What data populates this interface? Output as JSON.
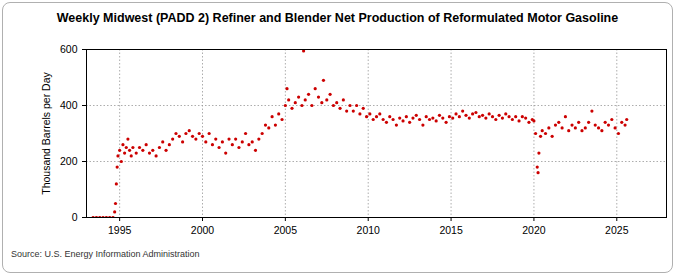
{
  "chart_data": {
    "type": "scatter",
    "title": "Weekly Midwest (PADD 2) Refiner and Blender Net Production of Reformulated Motor Gasoline",
    "y_label": "Thousand Barrels per Day",
    "caption": "Source: U.S. Energy Information Administration",
    "color": "#cc0000",
    "grid": true,
    "xlim": [
      1993,
      2028
    ],
    "xticks": [
      1995,
      2000,
      2005,
      2010,
      2015,
      2020,
      2025
    ],
    "ylim": [
      0,
      600
    ],
    "yticks": [
      0,
      200,
      400,
      600
    ],
    "x": [
      1993.4,
      1993.6,
      1993.8,
      1994.0,
      1994.2,
      1994.4,
      1994.6,
      1994.7,
      1994.75,
      1994.8,
      1994.85,
      1994.9,
      1995.0,
      1995.1,
      1995.2,
      1995.3,
      1995.4,
      1995.5,
      1995.6,
      1995.7,
      1995.8,
      1996.0,
      1996.2,
      1996.4,
      1996.6,
      1996.8,
      1997.0,
      1997.2,
      1997.4,
      1997.6,
      1997.8,
      1998.0,
      1998.2,
      1998.4,
      1998.6,
      1998.8,
      1999.0,
      1999.2,
      1999.4,
      1999.6,
      1999.8,
      2000.0,
      2000.2,
      2000.4,
      2000.6,
      2000.8,
      2001.0,
      2001.2,
      2001.4,
      2001.6,
      2001.8,
      2002.0,
      2002.2,
      2002.4,
      2002.6,
      2002.8,
      2003.0,
      2003.2,
      2003.4,
      2003.6,
      2003.8,
      2004.0,
      2004.2,
      2004.4,
      2004.6,
      2004.8,
      2005.0,
      2005.1,
      2005.2,
      2005.4,
      2005.6,
      2005.8,
      2006.0,
      2006.1,
      2006.2,
      2006.4,
      2006.6,
      2006.8,
      2007.0,
      2007.2,
      2007.3,
      2007.5,
      2007.7,
      2007.9,
      2008.1,
      2008.3,
      2008.5,
      2008.7,
      2008.9,
      2009.1,
      2009.3,
      2009.5,
      2009.7,
      2009.9,
      2010.1,
      2010.3,
      2010.5,
      2010.7,
      2010.9,
      2011.1,
      2011.3,
      2011.5,
      2011.7,
      2011.9,
      2012.1,
      2012.3,
      2012.5,
      2012.7,
      2012.9,
      2013.1,
      2013.3,
      2013.5,
      2013.7,
      2013.9,
      2014.1,
      2014.3,
      2014.5,
      2014.7,
      2014.9,
      2015.1,
      2015.3,
      2015.5,
      2015.7,
      2015.9,
      2016.1,
      2016.3,
      2016.5,
      2016.7,
      2016.9,
      2017.1,
      2017.3,
      2017.5,
      2017.7,
      2017.9,
      2018.1,
      2018.3,
      2018.5,
      2018.7,
      2018.9,
      2019.1,
      2019.3,
      2019.5,
      2019.7,
      2019.9,
      2020.0,
      2020.1,
      2020.2,
      2020.25,
      2020.3,
      2020.4,
      2020.5,
      2020.7,
      2020.9,
      2021.1,
      2021.3,
      2021.5,
      2021.7,
      2021.9,
      2022.1,
      2022.3,
      2022.5,
      2022.7,
      2022.9,
      2023.1,
      2023.3,
      2023.5,
      2023.7,
      2023.9,
      2024.1,
      2024.3,
      2024.5,
      2024.7,
      2024.9,
      2025.1,
      2025.3,
      2025.5,
      2025.6
    ],
    "values": [
      0,
      0,
      0,
      0,
      0,
      0,
      0,
      20,
      50,
      120,
      180,
      220,
      240,
      200,
      260,
      230,
      250,
      280,
      240,
      220,
      250,
      230,
      250,
      240,
      260,
      230,
      240,
      220,
      250,
      270,
      240,
      260,
      280,
      300,
      290,
      270,
      300,
      310,
      290,
      280,
      300,
      290,
      270,
      300,
      260,
      280,
      250,
      270,
      230,
      280,
      260,
      280,
      250,
      270,
      300,
      260,
      270,
      240,
      280,
      300,
      330,
      320,
      360,
      330,
      370,
      350,
      400,
      460,
      420,
      390,
      410,
      430,
      400,
      595,
      420,
      440,
      400,
      460,
      430,
      410,
      490,
      420,
      440,
      400,
      410,
      390,
      420,
      380,
      400,
      380,
      400,
      370,
      390,
      360,
      370,
      350,
      360,
      370,
      350,
      340,
      360,
      350,
      330,
      355,
      345,
      360,
      340,
      355,
      365,
      350,
      330,
      360,
      350,
      355,
      345,
      365,
      355,
      340,
      360,
      355,
      370,
      360,
      380,
      365,
      355,
      370,
      375,
      360,
      365,
      355,
      370,
      360,
      350,
      365,
      355,
      370,
      360,
      350,
      360,
      345,
      360,
      355,
      340,
      350,
      345,
      300,
      180,
      160,
      230,
      290,
      310,
      300,
      320,
      290,
      330,
      340,
      320,
      360,
      310,
      330,
      320,
      340,
      310,
      320,
      340,
      380,
      330,
      320,
      310,
      340,
      330,
      350,
      320,
      300,
      340,
      330,
      350
    ]
  }
}
